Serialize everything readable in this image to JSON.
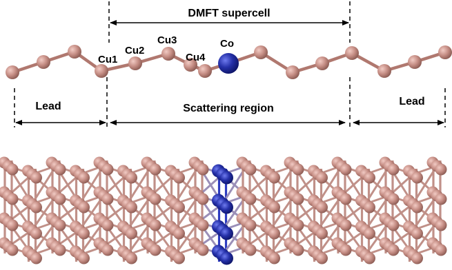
{
  "labels": {
    "supercell": "DMFT supercell",
    "cu1": "Cu1",
    "cu2": "Cu2",
    "cu3": "Cu3",
    "cu4": "Cu4",
    "co": "Co",
    "lead_left": "Lead",
    "scattering": "Scattering region",
    "lead_right": "Lead"
  },
  "colors": {
    "copper": "#c48c83",
    "copper_dark": "#8a5a52",
    "cobalt": "#2530a8",
    "cobalt_dark": "#0d1466",
    "line": "#000000"
  },
  "chain": {
    "atoms": [
      "Cu",
      "Cu",
      "Cu",
      "Cu",
      "Cu1",
      "Cu2",
      "Cu3",
      "Cu4",
      "Co",
      "Cu",
      "Cu",
      "Cu",
      "Cu",
      "Cu",
      "Cu",
      "Cu"
    ]
  },
  "slab": {
    "columns": 19,
    "cobalt_column": 9
  }
}
